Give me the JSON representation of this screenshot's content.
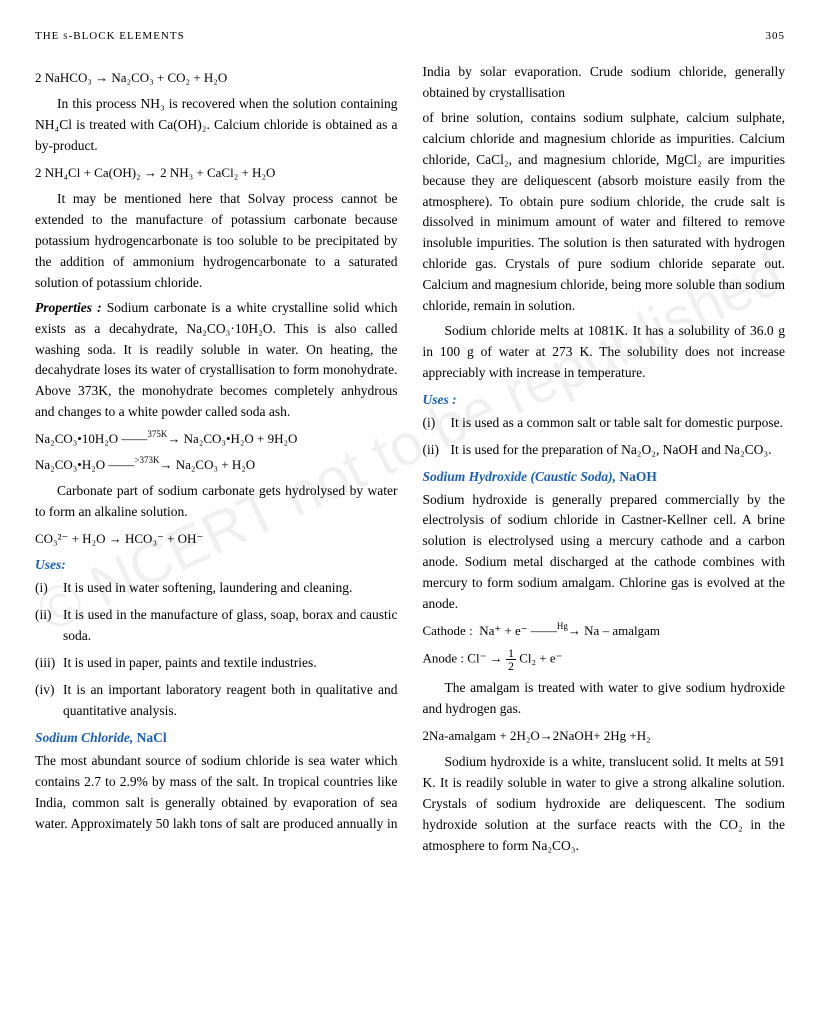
{
  "header": {
    "title": "THE s-BLOCK ELEMENTS",
    "page": "305"
  },
  "watermark": "© NCERT not to be republished",
  "eq1": "2 NaHCO₃ → Na₂CO₃ + CO₂ + H₂O",
  "p1": "In this process NH₃ is recovered when the solution containing NH₄Cl is treated with Ca(OH)₂. Calcium chloride is obtained as a by-product.",
  "eq2": "2 NH₄Cl + Ca(OH)₂ → 2 NH₃ + CaCl₂ + H₂O",
  "p2": "It may be mentioned here that Solvay process cannot be extended to the manufacture of potassium carbonate because potassium hydrogencarbonate is too soluble to be precipitated by the addition of ammonium hydrogencarbonate to a saturated solution of potassium chloride.",
  "props_label": "Properties :",
  "props_text": " Sodium carbonate is a white crystalline solid which exists as a decahydrate, Na₂CO₃·10H₂O. This is also called washing soda. It is readily soluble in water. On heating, the decahydrate loses its water of crystallisation to form monohydrate. Above 373K, the monohydrate becomes completely anhydrous and changes to a white powder called soda ash.",
  "eq3a_left": "Na₂CO₃•10H₂O",
  "eq3a_cond": "375K",
  "eq3a_right": "Na₂CO₃•H₂O + 9H₂O",
  "eq3b_left": "Na₂CO₃•H₂O",
  "eq3b_cond": ">373K",
  "eq3b_right": "Na₂CO₃ + H₂O",
  "p3": "Carbonate part of sodium carbonate gets hydrolysed by water to form an alkaline solution.",
  "eq4": "CO₃²⁻ + H₂O → HCO₃⁻ + OH⁻",
  "uses1_title": "Uses:",
  "uses1": [
    "It is used in water softening, laundering and cleaning.",
    "It is used in the manufacture of glass, soap, borax and caustic soda.",
    "It is used in paper, paints and textile industries.",
    "It is an important laboratory reagent both in qualitative and quantitative analysis."
  ],
  "nacl_title": "Sodium Chloride,",
  "nacl_formula": " NaCl",
  "nacl_p1": "The most abundant source of sodium chloride is sea water which contains 2.7 to 2.9% by mass of the salt. In tropical countries like India, common salt is generally obtained by evaporation of sea water. Approximately 50 lakh tons of salt are produced annually in India by solar evaporation. Crude sodium chloride, generally obtained by crystallisation",
  "nacl_p2": "of brine solution, contains sodium sulphate, calcium sulphate, calcium chloride and magnesium chloride as impurities. Calcium chloride, CaCl₂, and magnesium chloride, MgCl₂ are impurities because they are deliquescent (absorb moisture easily from the atmosphere). To obtain pure sodium chloride, the crude salt is dissolved in minimum amount of water and filtered to remove insoluble impurities. The solution is then saturated with hydrogen chloride gas. Crystals of pure sodium chloride separate out. Calcium and magnesium chloride, being more soluble than sodium chloride, remain in solution.",
  "nacl_p3": "Sodium chloride melts at 1081K. It has a solubility of 36.0 g in 100 g of water at 273 K. The solubility does not increase appreciably with increase in temperature.",
  "uses2_title": "Uses :",
  "uses2": [
    "It is used as a common salt or table salt for domestic purpose.",
    "It is used for the preparation of Na₂O₂, NaOH and Na₂CO₃."
  ],
  "naoh_title": "Sodium Hydroxide (Caustic Soda),",
  "naoh_formula": " NaOH",
  "naoh_p1": "Sodium hydroxide is generally prepared commercially by the electrolysis of sodium chloride in Castner-Kellner cell. A brine solution is electrolysed using a mercury cathode and a carbon anode. Sodium metal discharged at the cathode combines with mercury to form sodium amalgam. Chlorine gas is evolved at the anode.",
  "cathode_label": "Cathode :",
  "cathode_eq_left": "Na⁺  +  e⁻",
  "cathode_cond": "Hg",
  "cathode_eq_right": "Na – amalgam",
  "anode_label": "Anode :",
  "anode_left": "Cl⁻ →",
  "anode_right": "Cl₂ + e⁻",
  "naoh_p2": "The amalgam is treated with water to give sodium hydroxide and hydrogen gas.",
  "eq_amalgam": "2Na-amalgam + 2H₂O→2NaOH+ 2Hg +H₂",
  "naoh_p3": "Sodium hydroxide is a white, translucent solid. It melts at 591 K. It is readily soluble in water to give a strong alkaline solution. Crystals of sodium hydroxide are deliquescent. The sodium hydroxide solution at the surface reacts with the CO₂ in the atmosphere to form Na₂CO₃."
}
